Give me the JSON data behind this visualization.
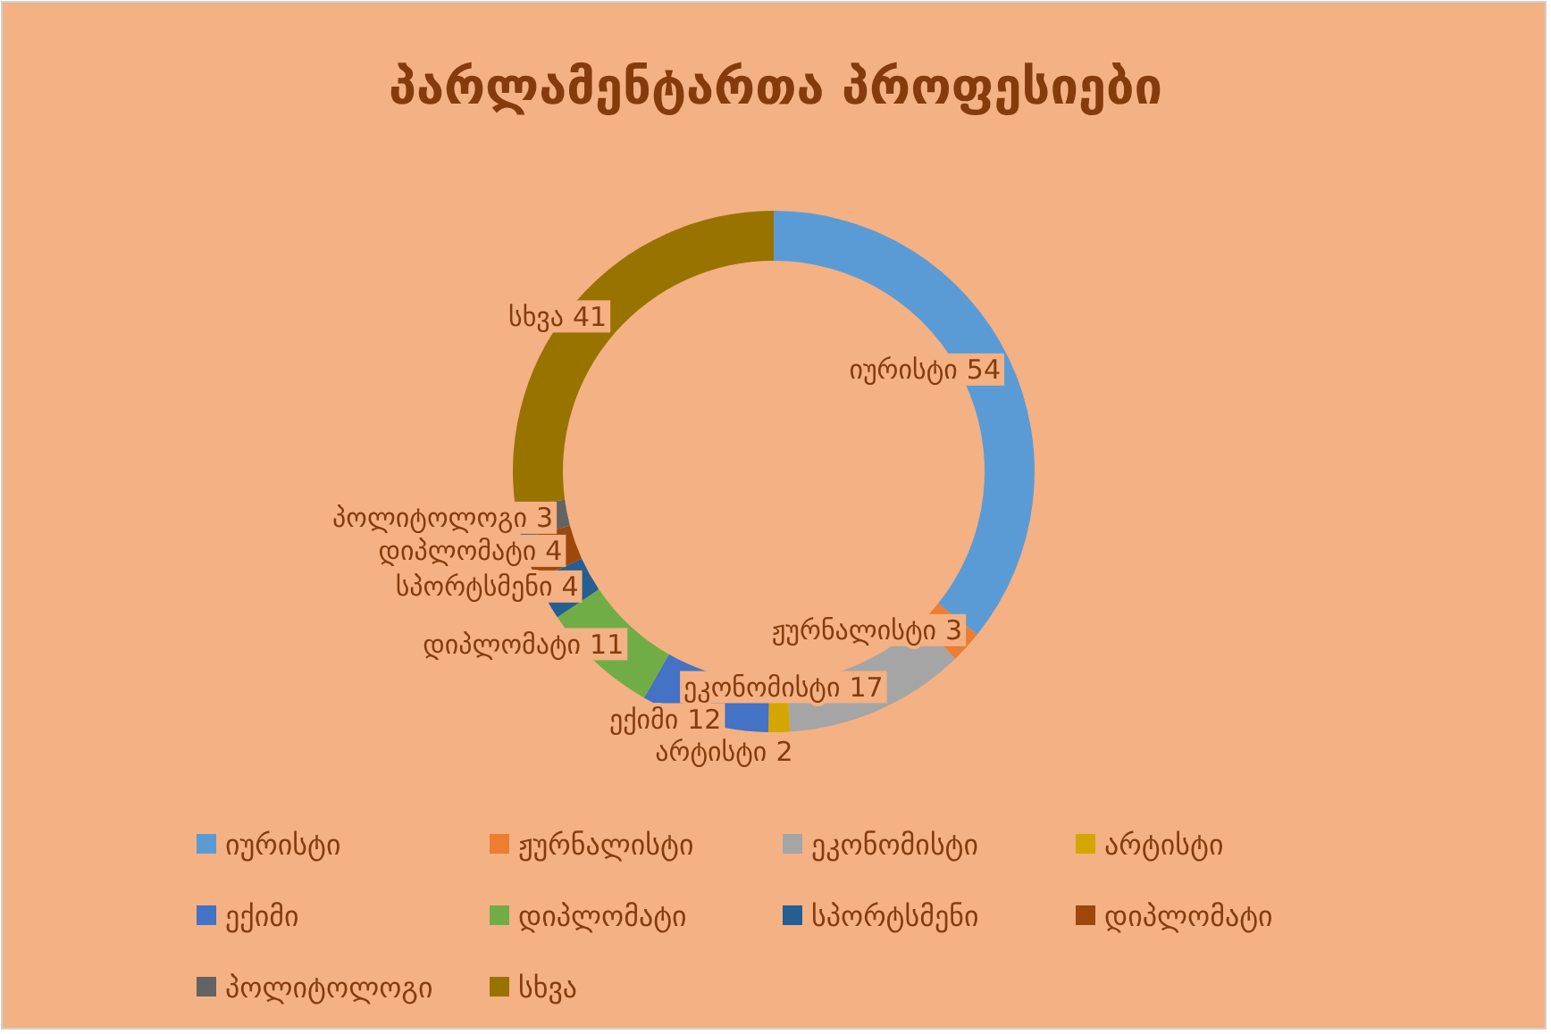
{
  "chart_data": {
    "type": "donut",
    "title": "პარლამენტართა პროფესიები",
    "categories": [
      "იურისტი",
      "ჟურნალისტი",
      "ეკონომისტი",
      "არტისტი",
      "ექიმი",
      "დიპლომატი",
      "სპორტსმენი",
      "დიპლომატი",
      "პოლიტოლოგი",
      "სხვა"
    ],
    "values": [
      54,
      3,
      17,
      2,
      12,
      11,
      4,
      4,
      3,
      41
    ],
    "colors": [
      "#5b9bd5",
      "#ed7d31",
      "#a5a5a5",
      "#d4a600",
      "#4472c4",
      "#70ad47",
      "#255e91",
      "#9e480e",
      "#636363",
      "#997300"
    ],
    "data_labels": true,
    "legend": "bottom"
  }
}
